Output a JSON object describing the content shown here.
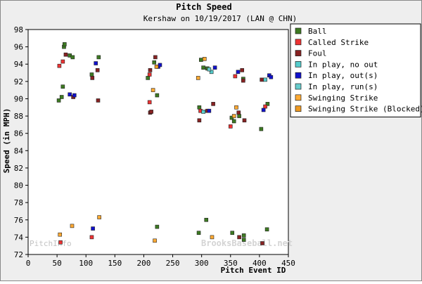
{
  "chart_data": {
    "type": "scatter",
    "title": "Pitch Speed",
    "subtitle": "Kershaw on 10/19/2017 (LAN @ CHN)",
    "xlabel": "Pitch Event ID",
    "ylabel": "Speed (in MPH)",
    "xlim": [
      0,
      450
    ],
    "ylim": [
      72,
      98
    ],
    "x_ticks": [
      "0",
      "50",
      "100",
      "150",
      "200",
      "250",
      "300",
      "350",
      "400",
      "450"
    ],
    "y_ticks": [
      "72",
      "74",
      "76",
      "78",
      "80",
      "82",
      "84",
      "86",
      "88",
      "90",
      "92",
      "94",
      "96",
      "98"
    ],
    "grid": false,
    "legend_position": "right",
    "watermarks": [
      "PitchInfo",
      "BrooksBaseball.net"
    ],
    "series": [
      {
        "name": "Ball",
        "color": "#3d7a22",
        "points": [
          {
            "x": 53,
            "y": 89.8
          },
          {
            "x": 58,
            "y": 90.2
          },
          {
            "x": 60,
            "y": 91.4
          },
          {
            "x": 62,
            "y": 96.0
          },
          {
            "x": 63,
            "y": 96.3
          },
          {
            "x": 72,
            "y": 95.0
          },
          {
            "x": 77,
            "y": 94.8
          },
          {
            "x": 110,
            "y": 92.8
          },
          {
            "x": 122,
            "y": 94.8
          },
          {
            "x": 207,
            "y": 92.4
          },
          {
            "x": 218,
            "y": 94.2
          },
          {
            "x": 223,
            "y": 90.4
          },
          {
            "x": 296,
            "y": 89.0
          },
          {
            "x": 299,
            "y": 94.5
          },
          {
            "x": 303,
            "y": 93.6
          },
          {
            "x": 310,
            "y": 93.5
          },
          {
            "x": 352,
            "y": 87.8
          },
          {
            "x": 356,
            "y": 87.4
          },
          {
            "x": 365,
            "y": 88.0
          },
          {
            "x": 372,
            "y": 92.3
          },
          {
            "x": 403,
            "y": 86.5
          },
          {
            "x": 414,
            "y": 89.4
          },
          {
            "x": 223,
            "y": 75.2
          },
          {
            "x": 295,
            "y": 74.5
          },
          {
            "x": 308,
            "y": 76.0
          },
          {
            "x": 353,
            "y": 74.5
          },
          {
            "x": 373,
            "y": 74.2
          },
          {
            "x": 373,
            "y": 73.7
          },
          {
            "x": 413,
            "y": 74.9
          }
        ]
      },
      {
        "name": "Called Strike",
        "color": "#ee3333",
        "points": [
          {
            "x": 54,
            "y": 93.8
          },
          {
            "x": 60,
            "y": 94.3
          },
          {
            "x": 210,
            "y": 89.6
          },
          {
            "x": 210,
            "y": 92.8
          },
          {
            "x": 298,
            "y": 88.6
          },
          {
            "x": 350,
            "y": 86.8
          },
          {
            "x": 358,
            "y": 92.6
          },
          {
            "x": 410,
            "y": 89.1
          },
          {
            "x": 56,
            "y": 73.4
          },
          {
            "x": 110,
            "y": 74.0
          }
        ]
      },
      {
        "name": "Foul",
        "color": "#882222",
        "points": [
          {
            "x": 65,
            "y": 95.1
          },
          {
            "x": 78,
            "y": 90.2
          },
          {
            "x": 111,
            "y": 92.4
          },
          {
            "x": 120,
            "y": 93.3
          },
          {
            "x": 121,
            "y": 89.8
          },
          {
            "x": 211,
            "y": 93.3
          },
          {
            "x": 211,
            "y": 88.4
          },
          {
            "x": 213,
            "y": 88.5
          },
          {
            "x": 220,
            "y": 94.8
          },
          {
            "x": 296,
            "y": 87.5
          },
          {
            "x": 310,
            "y": 88.6
          },
          {
            "x": 320,
            "y": 89.4
          },
          {
            "x": 364,
            "y": 88.4
          },
          {
            "x": 370,
            "y": 93.3
          },
          {
            "x": 372,
            "y": 92.1
          },
          {
            "x": 374,
            "y": 87.5
          },
          {
            "x": 404,
            "y": 92.2
          },
          {
            "x": 365,
            "y": 74.0
          },
          {
            "x": 405,
            "y": 73.3
          }
        ]
      },
      {
        "name": "In play, no out",
        "color": "#55cccc",
        "points": [
          {
            "x": 303,
            "y": 88.5
          },
          {
            "x": 317,
            "y": 93.1
          },
          {
            "x": 410,
            "y": 92.2
          }
        ]
      },
      {
        "name": "In play, out(s)",
        "color": "#1111cc",
        "points": [
          {
            "x": 72,
            "y": 90.5
          },
          {
            "x": 80,
            "y": 90.4
          },
          {
            "x": 117,
            "y": 94.1
          },
          {
            "x": 225,
            "y": 93.7
          },
          {
            "x": 228,
            "y": 93.9
          },
          {
            "x": 313,
            "y": 88.6
          },
          {
            "x": 323,
            "y": 93.6
          },
          {
            "x": 363,
            "y": 93.1
          },
          {
            "x": 407,
            "y": 88.7
          },
          {
            "x": 417,
            "y": 92.7
          },
          {
            "x": 420,
            "y": 92.5
          },
          {
            "x": 112,
            "y": 75.0
          }
        ]
      },
      {
        "name": "In play, run(s)",
        "color": "#66cccc",
        "points": [
          {
            "x": 313,
            "y": 93.4
          }
        ]
      },
      {
        "name": "Swinging Strike",
        "color": "#ffaa33",
        "points": [
          {
            "x": 216,
            "y": 91.0
          },
          {
            "x": 294,
            "y": 92.4
          },
          {
            "x": 305,
            "y": 94.6
          },
          {
            "x": 356,
            "y": 88.0
          },
          {
            "x": 360,
            "y": 89.0
          },
          {
            "x": 55,
            "y": 74.3
          },
          {
            "x": 76,
            "y": 75.3
          },
          {
            "x": 123,
            "y": 76.3
          },
          {
            "x": 219,
            "y": 73.6
          },
          {
            "x": 318,
            "y": 74.0
          }
        ]
      },
      {
        "name": "Swinging Strike (Blocked)",
        "color": "#ee9922",
        "points": [
          {
            "x": 222,
            "y": 93.7
          }
        ]
      }
    ]
  }
}
